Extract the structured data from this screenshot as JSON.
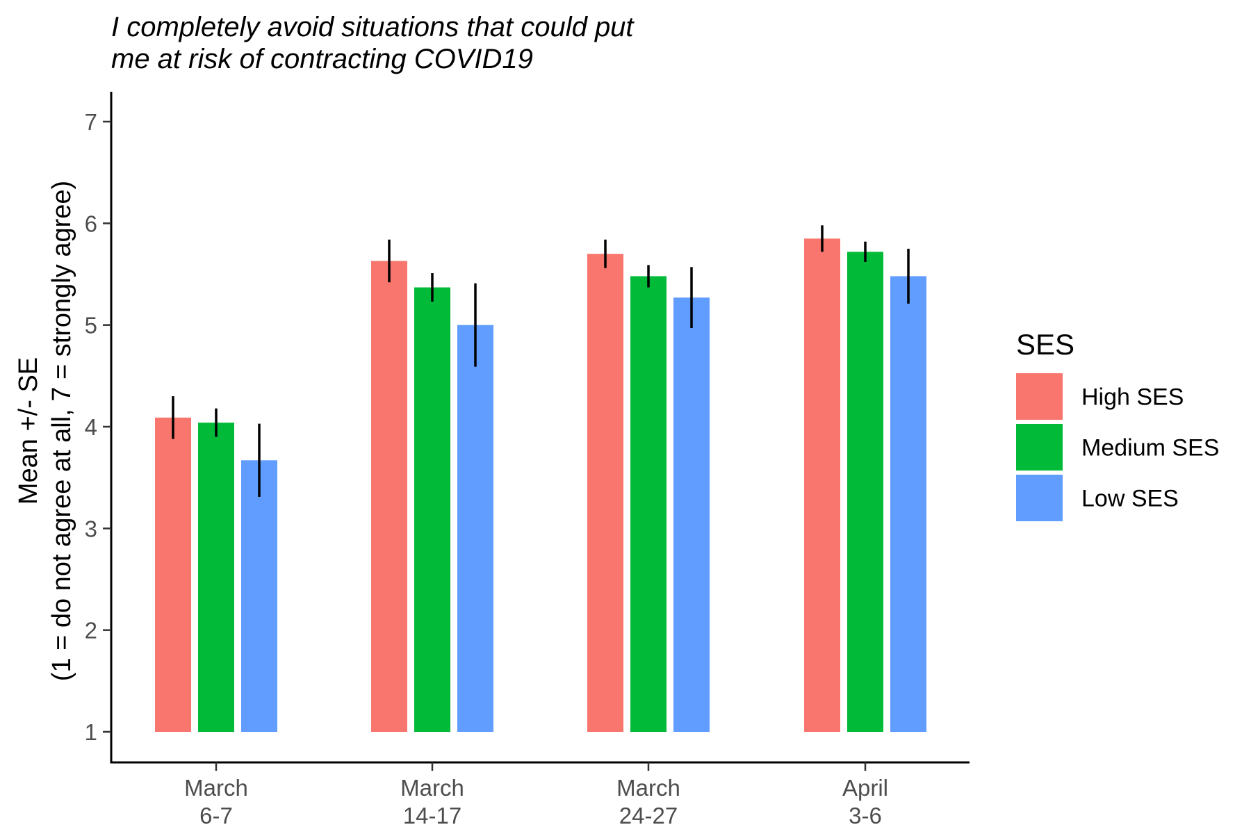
{
  "chart_data": {
    "type": "bar",
    "title_lines": [
      "I completely avoid situations that could put",
      "me at risk of contracting COVID19"
    ],
    "xlabel": "",
    "ylabel_lines": [
      "Mean +/- SE",
      "(1 = do not agree at all, 7 = strongly agree)"
    ],
    "ylim": [
      1,
      7
    ],
    "yticks": [
      1,
      2,
      3,
      4,
      5,
      6,
      7
    ],
    "bar_base": 1,
    "categories": [
      [
        "March",
        "6-7"
      ],
      [
        "March",
        "14-17"
      ],
      [
        "March",
        "24-27"
      ],
      [
        "April",
        "3-6"
      ]
    ],
    "series": [
      {
        "name": "High SES",
        "color": "#F8766D",
        "values": [
          4.09,
          5.63,
          5.7,
          5.85
        ],
        "se": [
          0.21,
          0.21,
          0.14,
          0.13
        ]
      },
      {
        "name": "Medium SES",
        "color": "#00BA38",
        "values": [
          4.04,
          5.37,
          5.48,
          5.72
        ],
        "se": [
          0.14,
          0.14,
          0.11,
          0.1
        ]
      },
      {
        "name": "Low SES",
        "color": "#619CFF",
        "values": [
          3.67,
          5.0,
          5.27,
          5.48
        ],
        "se": [
          0.36,
          0.41,
          0.3,
          0.27
        ]
      }
    ],
    "grid": false,
    "legend": {
      "title": "SES",
      "placement": "right"
    }
  }
}
